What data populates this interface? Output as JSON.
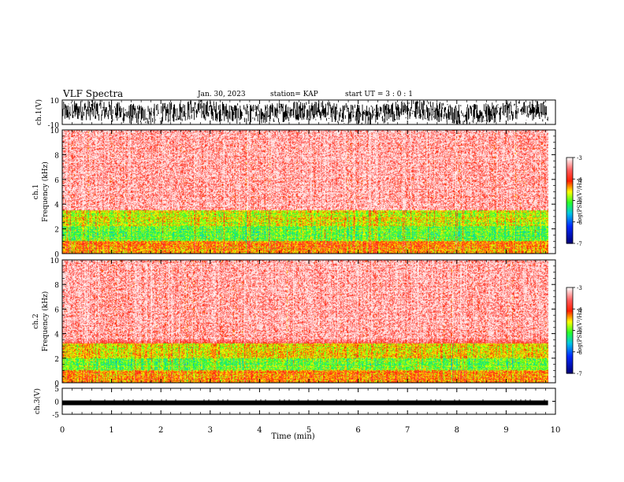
{
  "header": {
    "title": "VLF Spectra",
    "date": "Jan. 30, 2023",
    "station": "station= KAP",
    "start": "start  UT  =   3 : 0  : 1"
  },
  "chart_data": [
    {
      "type": "line",
      "panel": "ch1 waveform",
      "ylabel": "ch.1(V)",
      "ylim": [
        -10,
        10
      ],
      "yticks": [
        "10",
        "-10"
      ],
      "x_range_min": [
        0,
        9.85
      ],
      "description_values": {
        "typical_min": -9,
        "typical_max": 9
      }
    },
    {
      "type": "heatmap",
      "panel": "ch1 spectrogram",
      "ylabel": "ch.1\nFrequency (kHz)",
      "ylim": [
        0,
        10
      ],
      "yticks": [
        "0",
        "2",
        "4",
        "6",
        "8",
        "10"
      ],
      "colorbar": {
        "label": "log(PSD)(V²/Hz)",
        "range": [
          -7,
          -3
        ],
        "ticks": [
          "-3",
          "-4",
          "-5",
          "-6",
          "-7"
        ]
      },
      "bands": [
        {
          "from_khz": 0,
          "to_khz": 1,
          "level": -4.3
        },
        {
          "from_khz": 1,
          "to_khz": 2.2,
          "level": -5.0
        },
        {
          "from_khz": 2.2,
          "to_khz": 3.5,
          "level": -4.7
        },
        {
          "from_khz": 3.5,
          "to_khz": 10,
          "level": -3.6
        }
      ]
    },
    {
      "type": "heatmap",
      "panel": "ch2 spectrogram",
      "ylabel": "ch.2\nFrequency (kHz)",
      "ylim": [
        0,
        10
      ],
      "yticks": [
        "0",
        "2",
        "4",
        "6",
        "8",
        "10"
      ],
      "colorbar": {
        "label": "log(PSD)(V²/Hz)",
        "range": [
          -7,
          -3
        ],
        "ticks": [
          "-3",
          "-4",
          "-5",
          "-6",
          "-7"
        ]
      },
      "bands": [
        {
          "from_khz": 0,
          "to_khz": 1,
          "level": -4.3
        },
        {
          "from_khz": 1,
          "to_khz": 2.0,
          "level": -5.0
        },
        {
          "from_khz": 2.0,
          "to_khz": 3.2,
          "level": -4.6
        },
        {
          "from_khz": 3.2,
          "to_khz": 10,
          "level": -3.6
        }
      ]
    },
    {
      "type": "line",
      "panel": "ch3 waveform",
      "ylabel": "ch.3(V)",
      "ylim": [
        -5,
        5
      ],
      "yticks": [
        "5",
        "0",
        "-5"
      ],
      "approx_level": -0.6
    }
  ],
  "xaxis": {
    "label": "Time  (min)",
    "range": [
      0,
      10
    ],
    "ticks": [
      "0",
      "1",
      "2",
      "3",
      "4",
      "5",
      "6",
      "7",
      "8",
      "9",
      "10"
    ],
    "data_end": 9.85
  }
}
